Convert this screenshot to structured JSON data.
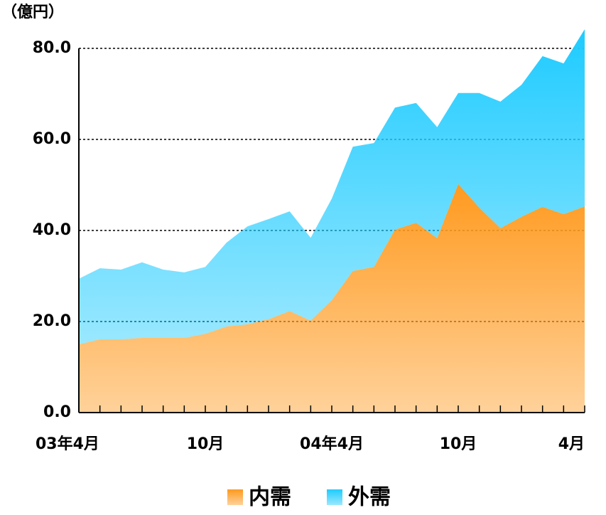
{
  "chart_data": {
    "type": "stacked_area",
    "y_axis_label": "（億円）",
    "categories": [
      "03年4月",
      null,
      null,
      null,
      null,
      null,
      "10月",
      null,
      null,
      null,
      null,
      null,
      "04年4月",
      null,
      null,
      null,
      null,
      null,
      "10月",
      null,
      null,
      null,
      null,
      null,
      "4月"
    ],
    "series": [
      {
        "name": "内需",
        "color": "#ff9a1f",
        "values": [
          15.0,
          16.1,
          16.1,
          16.4,
          16.4,
          16.4,
          17.3,
          18.9,
          19.4,
          20.5,
          22.3,
          20.2,
          24.7,
          31.1,
          32.0,
          40.2,
          41.7,
          38.3,
          50.2,
          45.0,
          40.5,
          43.0,
          45.2,
          43.6,
          45.3
        ]
      },
      {
        "name": "外需",
        "color": "#1ecbff",
        "values": [
          14.4,
          15.6,
          15.3,
          16.6,
          15.0,
          14.4,
          14.7,
          18.4,
          21.5,
          22.0,
          21.9,
          18.2,
          22.3,
          27.3,
          27.2,
          26.8,
          26.3,
          24.4,
          20.0,
          25.2,
          27.8,
          29.0,
          33.1,
          33.1,
          38.9
        ]
      }
    ],
    "ylim": [
      0,
      80
    ],
    "yticks": [
      {
        "value": 0,
        "label": "0.0"
      },
      {
        "value": 20,
        "label": "20.0"
      },
      {
        "value": 40,
        "label": "40.0"
      },
      {
        "value": 60,
        "label": "60.0"
      },
      {
        "value": 80,
        "label": "80.0"
      }
    ],
    "grid": true
  }
}
